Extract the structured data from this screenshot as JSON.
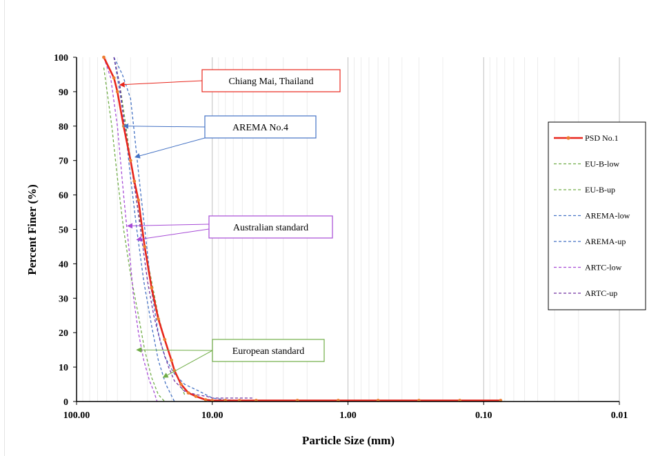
{
  "chart_data": {
    "type": "line",
    "xlabel": "Particle Size (mm)",
    "ylabel": "Percent Finer (%)",
    "x_scale": "log",
    "x_reversed": true,
    "xlim": [
      100,
      0.01
    ],
    "ylim": [
      0,
      100
    ],
    "x_ticks": [
      {
        "value": 100,
        "label": "100.00"
      },
      {
        "value": 10,
        "label": "10.00"
      },
      {
        "value": 1,
        "label": "1.00"
      },
      {
        "value": 0.1,
        "label": "0.10"
      },
      {
        "value": 0.01,
        "label": "0.01"
      }
    ],
    "y_ticks": [
      0,
      10,
      20,
      30,
      40,
      50,
      60,
      70,
      80,
      90,
      100
    ],
    "grid": {
      "major_x": true,
      "minor_x": true,
      "y": false
    },
    "legend_position": "right",
    "series": [
      {
        "name": "PSD No.1",
        "color": "#e8251b",
        "dash": "solid",
        "marker": true,
        "marker_color": "#ed7d31",
        "x": [
          63,
          53,
          50,
          45,
          40,
          37.5,
          35,
          31.5,
          28,
          25,
          22.4,
          20,
          19,
          17,
          15,
          13.2,
          11.2,
          10,
          8,
          6.3,
          4.75,
          2.36,
          1.18,
          0.6,
          0.3,
          0.15,
          0.075
        ],
        "y": [
          100,
          94,
          90,
          80,
          70,
          64,
          58.5,
          45,
          33,
          24,
          18,
          12,
          9,
          5,
          2.5,
          1.5,
          0.5,
          0.3,
          0.3,
          0.3,
          0.3,
          0.3,
          0.3,
          0.3,
          0.3,
          0.3,
          0.3
        ]
      },
      {
        "name": "EU-B-low",
        "color": "#70ad47",
        "dash": "dashed",
        "marker": false,
        "x": [
          63,
          55,
          50,
          45,
          40,
          35,
          31.5,
          28,
          25,
          22.4
        ],
        "y": [
          97,
          80,
          65,
          50,
          37,
          25,
          15,
          7,
          2,
          0
        ]
      },
      {
        "name": "EU-B-up",
        "color": "#70ad47",
        "dash": "dashed",
        "marker": false,
        "x": [
          53,
          48,
          44,
          40,
          35,
          31.5,
          28,
          25,
          22.4,
          20,
          18,
          16
        ],
        "y": [
          100,
          92,
          82,
          70,
          55,
          45,
          35,
          25,
          18,
          12,
          7,
          2
        ]
      },
      {
        "name": "AREMA-low",
        "color": "#4472c4",
        "dash": "dashed",
        "marker": false,
        "x": [
          53,
          48,
          44,
          40,
          36,
          32,
          28,
          25,
          22,
          19
        ],
        "y": [
          100,
          90,
          80,
          65,
          50,
          35,
          22,
          12,
          5,
          0
        ]
      },
      {
        "name": "AREMA-up",
        "color": "#4472c4",
        "dash": "dashed",
        "marker": false,
        "x": [
          53,
          46,
          40,
          37.5,
          34,
          31,
          28,
          25,
          22.4,
          19,
          16,
          12.5,
          10,
          8,
          6.3,
          5
        ],
        "y": [
          100,
          95,
          88,
          78,
          62,
          48,
          32,
          20,
          13,
          8,
          5,
          3,
          1,
          0.5,
          0.3,
          0
        ]
      },
      {
        "name": "ARTC-low",
        "color": "#a64ad6",
        "dash": "dashed",
        "marker": false,
        "x": [
          63,
          56,
          50,
          45,
          42,
          40,
          38,
          35,
          32,
          29,
          27,
          25.5
        ],
        "y": [
          100,
          94,
          80,
          60,
          48,
          40,
          30,
          20,
          12,
          6,
          3,
          0
        ]
      },
      {
        "name": "ARTC-up",
        "color": "#7030a0",
        "dash": "dashed",
        "marker": false,
        "x": [
          53,
          48,
          45,
          40,
          36,
          33,
          30,
          27,
          24,
          21,
          19,
          16,
          13.2,
          11,
          10,
          7,
          5
        ],
        "y": [
          100,
          92,
          82,
          70,
          58,
          47,
          35,
          25,
          17,
          10,
          6,
          3,
          2,
          1.5,
          1,
          1,
          1
        ]
      }
    ],
    "annotations": [
      {
        "label": "Chiang Mai, Thailand",
        "color": "#e8251b",
        "targets": [
          {
            "x": 48,
            "y": 92
          }
        ]
      },
      {
        "label": "AREMA No.4",
        "color": "#4472c4",
        "targets": [
          {
            "x": 45,
            "y": 80
          },
          {
            "x": 37,
            "y": 71
          }
        ]
      },
      {
        "label": "Australian standard",
        "color": "#a64ad6",
        "targets": [
          {
            "x": 42,
            "y": 51
          },
          {
            "x": 36,
            "y": 47
          }
        ]
      },
      {
        "label": "European standard",
        "color": "#70ad47",
        "targets": [
          {
            "x": 36,
            "y": 15
          },
          {
            "x": 23,
            "y": 7
          }
        ]
      }
    ]
  }
}
